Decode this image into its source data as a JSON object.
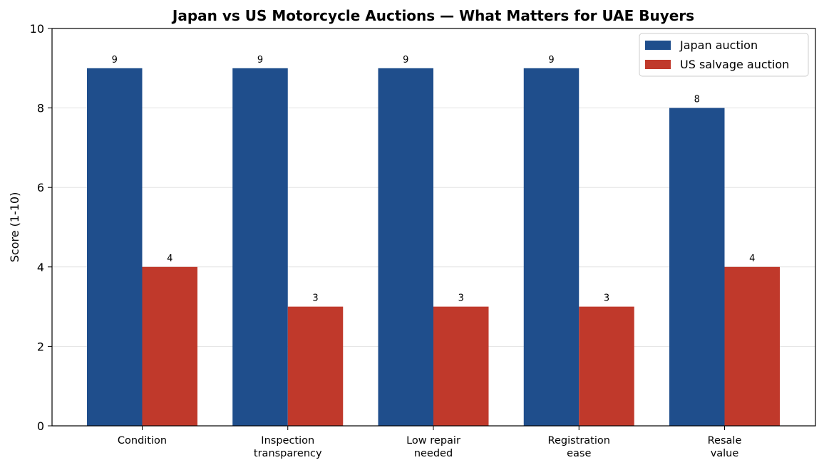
{
  "chart_data": {
    "type": "bar",
    "title": "Japan vs US Motorcycle Auctions — What Matters for UAE Buyers",
    "xlabel": "",
    "ylabel": "Score (1-10)",
    "ylim": [
      0,
      10
    ],
    "yticks": [
      0,
      2,
      4,
      6,
      8,
      10
    ],
    "grid": "horizontal",
    "legend_position": "top-right",
    "categories": [
      [
        "Condition"
      ],
      [
        "Inspection",
        "transparency"
      ],
      [
        "Low repair",
        "needed"
      ],
      [
        "Registration",
        "ease"
      ],
      [
        "Resale",
        "value"
      ]
    ],
    "series": [
      {
        "name": "Japan auction",
        "color": "#1f4e8c",
        "values": [
          9,
          9,
          9,
          9,
          8
        ]
      },
      {
        "name": "US salvage auction",
        "color": "#c0392b",
        "values": [
          4,
          3,
          3,
          3,
          4
        ]
      }
    ]
  }
}
